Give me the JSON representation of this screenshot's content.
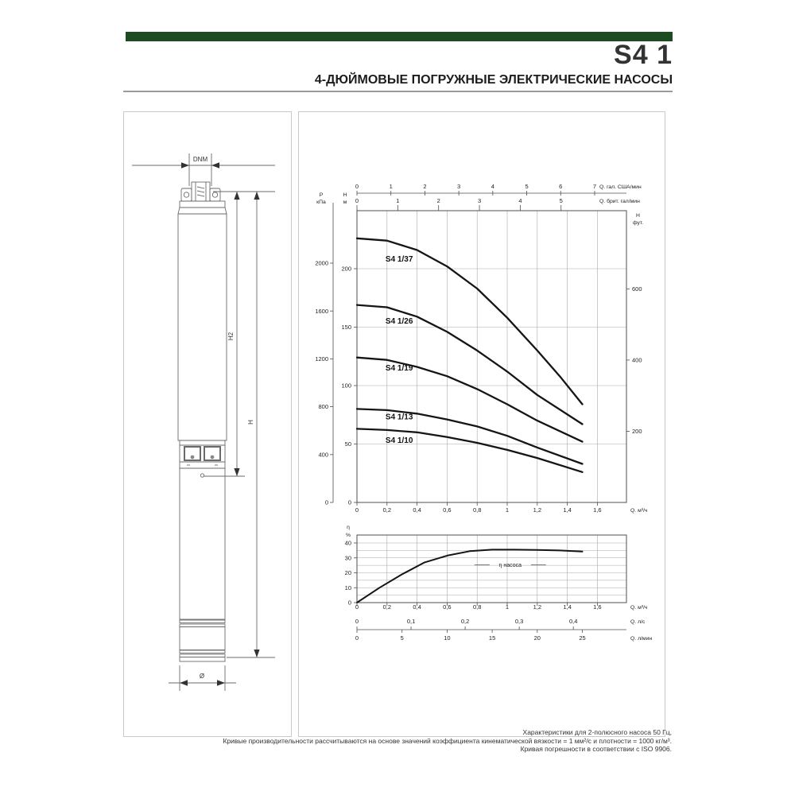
{
  "header": {
    "title": "S4 1",
    "subtitle": "4-ДЮЙМОВЫЕ ПОГРУЖНЫЕ ЭЛЕКТРИЧЕСКИЕ НАСОСЫ",
    "accent_color": "#1d4c22"
  },
  "drawing": {
    "dim_nozzle": "DNM",
    "dim_h2": "H2",
    "dim_h": "H",
    "dim_diameter": "Ø"
  },
  "chart_data": [
    {
      "type": "line",
      "name": "head-flow-curves",
      "grid": true,
      "x_bottom": {
        "label": "Q. м³/ч",
        "range": [
          0,
          1.794
        ],
        "ticks": [
          {
            "v": 0,
            "t": "0"
          },
          {
            "v": 0.2,
            "t": "0,2"
          },
          {
            "v": 0.4,
            "t": "0,4"
          },
          {
            "v": 0.6,
            "t": "0,6"
          },
          {
            "v": 0.8,
            "t": "0,8"
          },
          {
            "v": 1,
            "t": "1"
          },
          {
            "v": 1.2,
            "t": "1,2"
          },
          {
            "v": 1.4,
            "t": "1,4"
          },
          {
            "v": 1.6,
            "t": "1,6"
          }
        ]
      },
      "x_top_usgpm": {
        "label": "Q. гал. США/мин",
        "ticks": [
          0,
          1,
          2,
          3,
          4,
          5,
          6,
          7
        ]
      },
      "x_top_impgpm": {
        "label": "Q. брит. гал/мин",
        "ticks": [
          0,
          1,
          2,
          3,
          4,
          5
        ]
      },
      "y_left_m": {
        "sym": "H",
        "unit": "м",
        "ticks": [
          0,
          50,
          100,
          150,
          200
        ],
        "range": [
          0,
          249.6
        ]
      },
      "y_left_kpa": {
        "sym": "P",
        "unit": "кПа",
        "ticks": [
          0,
          400,
          800,
          1200,
          1600,
          2000
        ]
      },
      "y_right_ft": {
        "sym": "H",
        "unit": "фут.",
        "ticks": [
          200,
          400,
          600
        ]
      },
      "series": [
        {
          "label": "S4 1/37",
          "label_at": [
            0.19,
            206
          ],
          "points": [
            [
              0,
              226
            ],
            [
              0.2,
              224
            ],
            [
              0.4,
              216
            ],
            [
              0.6,
              202
            ],
            [
              0.8,
              183
            ],
            [
              1,
              158
            ],
            [
              1.2,
              130
            ],
            [
              1.35,
              108
            ],
            [
              1.5,
              84
            ]
          ]
        },
        {
          "label": "S4 1/26",
          "label_at": [
            0.19,
            153
          ],
          "points": [
            [
              0,
              169
            ],
            [
              0.2,
              167
            ],
            [
              0.4,
              159
            ],
            [
              0.6,
              146
            ],
            [
              0.8,
              130
            ],
            [
              1,
              112
            ],
            [
              1.2,
              92
            ],
            [
              1.5,
              67
            ]
          ]
        },
        {
          "label": "S4 1/19",
          "label_at": [
            0.19,
            113
          ],
          "points": [
            [
              0,
              124
            ],
            [
              0.2,
              122
            ],
            [
              0.4,
              116
            ],
            [
              0.6,
              108
            ],
            [
              0.8,
              97
            ],
            [
              1,
              84
            ],
            [
              1.2,
              70
            ],
            [
              1.5,
              52
            ]
          ]
        },
        {
          "label": "S4 1/13",
          "label_at": [
            0.19,
            71
          ],
          "points": [
            [
              0,
              80
            ],
            [
              0.2,
              79
            ],
            [
              0.4,
              76
            ],
            [
              0.6,
              71
            ],
            [
              0.8,
              65
            ],
            [
              1,
              57
            ],
            [
              1.2,
              47
            ],
            [
              1.5,
              33
            ]
          ]
        },
        {
          "label": "S4 1/10",
          "label_at": [
            0.19,
            51
          ],
          "points": [
            [
              0,
              63
            ],
            [
              0.2,
              62
            ],
            [
              0.4,
              60
            ],
            [
              0.6,
              56
            ],
            [
              0.8,
              51
            ],
            [
              1,
              45
            ],
            [
              1.2,
              38
            ],
            [
              1.5,
              26
            ]
          ]
        }
      ]
    },
    {
      "type": "line",
      "name": "efficiency-curve",
      "grid": true,
      "y_left": {
        "sym": "η",
        "unit": "%",
        "ticks": [
          0,
          10,
          20,
          30,
          40
        ],
        "grid_step": 5,
        "range": [
          0,
          45.3
        ]
      },
      "x_bottom": {
        "label": "Q. м³/ч",
        "ticks": [
          {
            "v": 0,
            "t": "0"
          },
          {
            "v": 0.2,
            "t": "0,2"
          },
          {
            "v": 0.4,
            "t": "0,4"
          },
          {
            "v": 0.6,
            "t": "0,6"
          },
          {
            "v": 0.8,
            "t": "0,8"
          },
          {
            "v": 1,
            "t": "1"
          },
          {
            "v": 1.2,
            "t": "1,2"
          },
          {
            "v": 1.4,
            "t": "1,4"
          },
          {
            "v": 1.6,
            "t": "1,6"
          }
        ]
      },
      "x_lps": {
        "label": "Q. л/с",
        "ticks": [
          {
            "v": 0,
            "t": "0"
          },
          {
            "v": 0.1,
            "t": "0,1"
          },
          {
            "v": 0.2,
            "t": "0,2"
          },
          {
            "v": 0.3,
            "t": "0,3"
          },
          {
            "v": 0.4,
            "t": "0,4"
          }
        ]
      },
      "x_lpm": {
        "label": "Q. л/мин",
        "ticks": [
          0,
          5,
          10,
          15,
          20,
          25
        ]
      },
      "series": [
        {
          "label": "η насоса",
          "label_at": [
            1.02,
            24
          ],
          "points": [
            [
              0,
              0
            ],
            [
              0.15,
              10
            ],
            [
              0.3,
              19
            ],
            [
              0.45,
              27
            ],
            [
              0.6,
              31.5
            ],
            [
              0.75,
              34.5
            ],
            [
              0.9,
              35.5
            ],
            [
              1.05,
              35.5
            ],
            [
              1.2,
              35.3
            ],
            [
              1.35,
              35
            ],
            [
              1.5,
              34.3
            ]
          ]
        }
      ]
    }
  ],
  "footer": {
    "line1": "Характеристики для 2-полюсного насоса 50 Гц,",
    "line2": "Кривые производительности рассчитываются на основе значений коэффициента кинематической вязкости = 1 мм²/с и плотности = 1000 кг/м³.",
    "line3": "Кривая погрешности в соответствии с ISO 9906."
  }
}
